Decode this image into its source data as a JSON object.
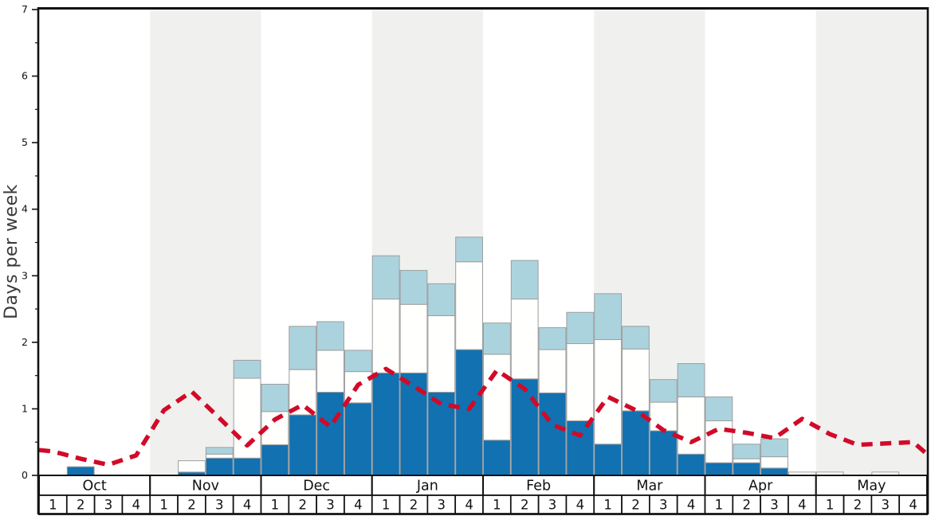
{
  "y_axis": {
    "label": "Days per week",
    "min": 0,
    "max": 7,
    "tick_labels": [
      "0",
      "1",
      "2",
      "3",
      "4",
      "5",
      "6",
      "7"
    ],
    "minor_tick_step": 0.5
  },
  "x_axis": {
    "months": [
      "Oct",
      "Nov",
      "Dec",
      "Jan",
      "Feb",
      "Mar",
      "Apr",
      "May"
    ],
    "week_labels": [
      "1",
      "2",
      "3",
      "4"
    ],
    "shaded_months": [
      "Nov",
      "Jan",
      "Mar",
      "May"
    ]
  },
  "colors": {
    "bar_dark_blue": "#1171b1",
    "bar_white": "#fffffe",
    "bar_light_blue": "#abd3dd",
    "bar_border": "#9e9e9e",
    "line_red": "#d10a28",
    "month_band_gray": "#f0f0ee",
    "frame_black": "#111111",
    "tick_text": "#111111",
    "axis_title_gray": "#3a3a3a"
  },
  "chart_data": {
    "type": "bar",
    "subtype": "stacked-bars-with-dashed-line",
    "title": "",
    "xlabel": "",
    "ylabel": "Days per week",
    "ylim": [
      0,
      7
    ],
    "legend": "none",
    "grid": "vertical month bands only",
    "series_note": "dark/white/light are cumulative stack tops in days per week; line is the red dashed overlay value at each week midpoint",
    "weeks": [
      {
        "month": "Oct",
        "week": "1",
        "dark": 0,
        "white": 0,
        "light": 0,
        "line": 0.36
      },
      {
        "month": "Oct",
        "week": "2",
        "dark": 0.13,
        "white": 0.13,
        "light": 0.13,
        "line": 0.25
      },
      {
        "month": "Oct",
        "week": "3",
        "dark": 0,
        "white": 0,
        "light": 0,
        "line": 0.16
      },
      {
        "month": "Oct",
        "week": "4",
        "dark": 0,
        "white": 0,
        "light": 0,
        "line": 0.3
      },
      {
        "month": "Nov",
        "week": "1",
        "dark": 0,
        "white": 0,
        "light": 0,
        "line": 0.98
      },
      {
        "month": "Nov",
        "week": "2",
        "dark": 0.05,
        "white": 0.22,
        "light": 0.22,
        "line": 1.26
      },
      {
        "month": "Nov",
        "week": "3",
        "dark": 0.26,
        "white": 0.32,
        "light": 0.42,
        "line": 0.86
      },
      {
        "month": "Nov",
        "week": "4",
        "dark": 0.26,
        "white": 1.46,
        "light": 1.73,
        "line": 0.45
      },
      {
        "month": "Dec",
        "week": "1",
        "dark": 0.46,
        "white": 0.96,
        "light": 1.37,
        "line": 0.84
      },
      {
        "month": "Dec",
        "week": "2",
        "dark": 0.91,
        "white": 1.59,
        "light": 2.24,
        "line": 1.06
      },
      {
        "month": "Dec",
        "week": "3",
        "dark": 1.25,
        "white": 1.88,
        "light": 2.31,
        "line": 0.73
      },
      {
        "month": "Dec",
        "week": "4",
        "dark": 1.09,
        "white": 1.56,
        "light": 1.88,
        "line": 1.36
      },
      {
        "month": "Jan",
        "week": "1",
        "dark": 1.54,
        "white": 2.65,
        "light": 3.3,
        "line": 1.6
      },
      {
        "month": "Jan",
        "week": "2",
        "dark": 1.54,
        "white": 2.57,
        "light": 3.08,
        "line": 1.34
      },
      {
        "month": "Jan",
        "week": "3",
        "dark": 1.25,
        "white": 2.4,
        "light": 2.88,
        "line": 1.07
      },
      {
        "month": "Jan",
        "week": "4",
        "dark": 1.89,
        "white": 3.21,
        "light": 3.58,
        "line": 1.0
      },
      {
        "month": "Feb",
        "week": "1",
        "dark": 0.53,
        "white": 1.82,
        "light": 2.29,
        "line": 1.58
      },
      {
        "month": "Feb",
        "week": "2",
        "dark": 1.45,
        "white": 2.65,
        "light": 3.23,
        "line": 1.3
      },
      {
        "month": "Feb",
        "week": "3",
        "dark": 1.24,
        "white": 1.89,
        "light": 2.22,
        "line": 0.76
      },
      {
        "month": "Feb",
        "week": "4",
        "dark": 0.82,
        "white": 1.98,
        "light": 2.45,
        "line": 0.6
      },
      {
        "month": "Mar",
        "week": "1",
        "dark": 0.47,
        "white": 2.04,
        "light": 2.73,
        "line": 1.18
      },
      {
        "month": "Mar",
        "week": "2",
        "dark": 0.97,
        "white": 1.9,
        "light": 2.24,
        "line": 0.98
      },
      {
        "month": "Mar",
        "week": "3",
        "dark": 0.67,
        "white": 1.1,
        "light": 1.44,
        "line": 0.68
      },
      {
        "month": "Mar",
        "week": "4",
        "dark": 0.32,
        "white": 1.18,
        "light": 1.68,
        "line": 0.5
      },
      {
        "month": "Apr",
        "week": "1",
        "dark": 0.19,
        "white": 0.82,
        "light": 1.18,
        "line": 0.7
      },
      {
        "month": "Apr",
        "week": "2",
        "dark": 0.19,
        "white": 0.25,
        "light": 0.47,
        "line": 0.64
      },
      {
        "month": "Apr",
        "week": "3",
        "dark": 0.11,
        "white": 0.28,
        "light": 0.55,
        "line": 0.56
      },
      {
        "month": "Apr",
        "week": "4",
        "dark": 0,
        "white": 0.05,
        "light": 0.05,
        "line": 0.85
      },
      {
        "month": "May",
        "week": "1",
        "dark": 0,
        "white": 0.05,
        "light": 0.05,
        "line": 0.62
      },
      {
        "month": "May",
        "week": "2",
        "dark": 0,
        "white": 0,
        "light": 0,
        "line": 0.46
      },
      {
        "month": "May",
        "week": "3",
        "dark": 0,
        "white": 0.05,
        "light": 0.05,
        "line": 0.48
      },
      {
        "month": "May",
        "week": "4",
        "dark": 0,
        "white": 0,
        "light": 0,
        "line": 0.5
      }
    ],
    "line_edge_values": {
      "at_left_axis": 0.38,
      "at_right_axis": 0.32
    }
  }
}
